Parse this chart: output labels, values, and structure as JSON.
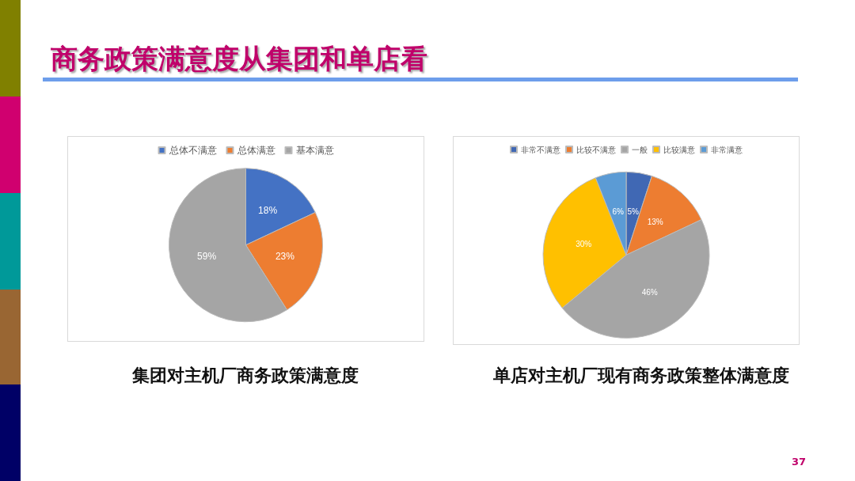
{
  "chart_data": [
    {
      "type": "pie",
      "title": "商务政策满意度从集团和单店看",
      "categories": [
        "总体不满意",
        "总体满意",
        "基本满意"
      ],
      "values": [
        18,
        23,
        59
      ],
      "value_labels": [
        "18%",
        "23%",
        "59%"
      ],
      "colors": [
        "#4472c4",
        "#ed7d31",
        "#a5a5a5"
      ],
      "legend": "top",
      "annotations": [
        "集团对主机厂商务政策满意度"
      ]
    },
    {
      "type": "pie",
      "categories": [
        "非常不满意",
        "比较不满意",
        "一般",
        "比较满意",
        "非常满意"
      ],
      "values": [
        5,
        13,
        46,
        30,
        6
      ],
      "value_labels": [
        "5%",
        "13%",
        "46%",
        "30%",
        "6%"
      ],
      "colors": [
        "#4068b4",
        "#ed7d31",
        "#a5a5a5",
        "#ffc000",
        "#5b9bd5"
      ],
      "legend": "top",
      "annotations": [
        "单店对主机厂现有商务政策整体满意度",
        "37"
      ]
    }
  ]
}
